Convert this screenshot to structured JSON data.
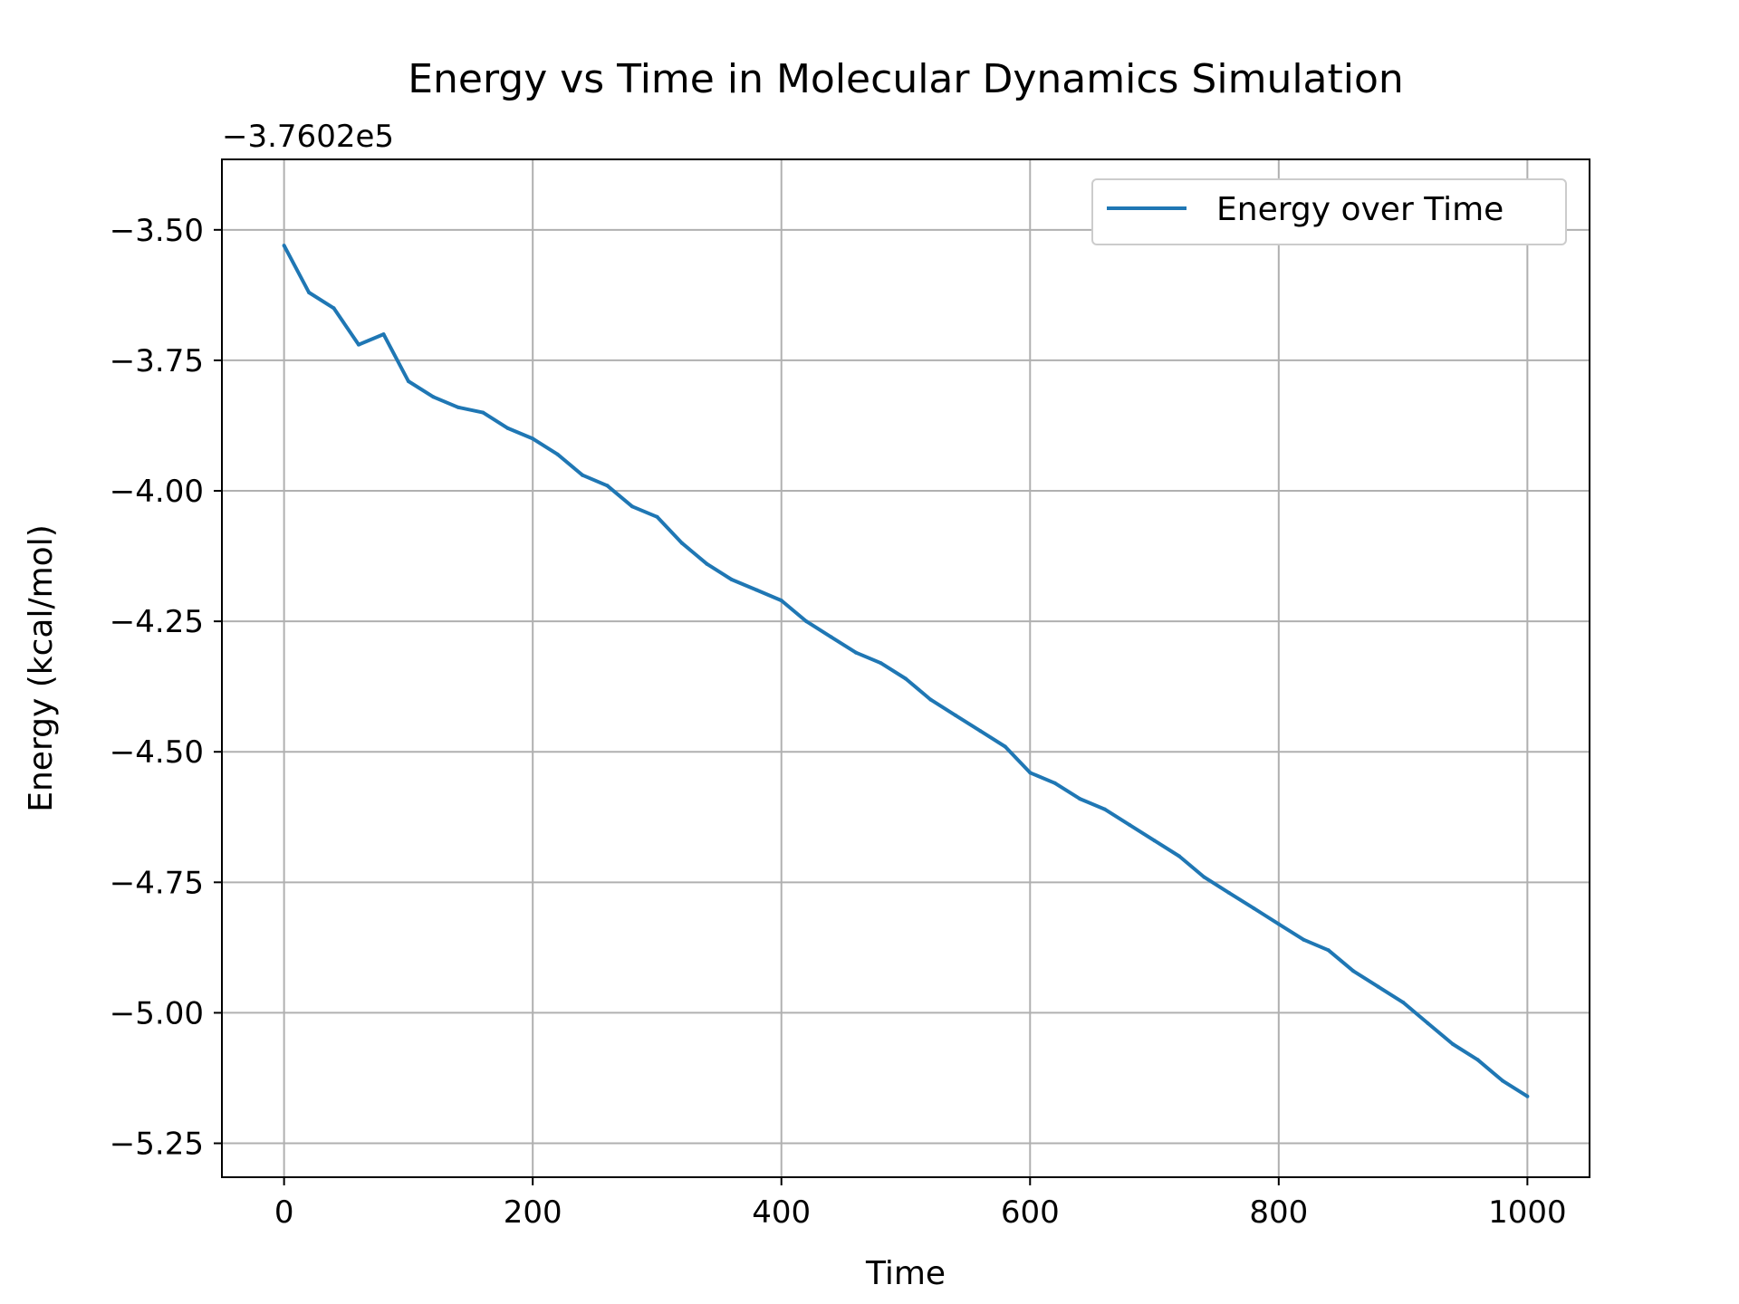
{
  "chart_data": {
    "type": "line",
    "title": "Energy vs Time in Molecular Dynamics Simulation",
    "xlabel": "Time",
    "ylabel": "Energy (kcal/mol)",
    "y_offset_label": "−3.7602e5",
    "y_offset": -376020,
    "xlim": [
      -50,
      1050
    ],
    "ylim": [
      -5.315,
      -3.365
    ],
    "x_ticks": [
      0,
      200,
      400,
      600,
      800,
      1000
    ],
    "x_tick_labels": [
      "0",
      "200",
      "400",
      "600",
      "800",
      "1000"
    ],
    "y_ticks": [
      -3.5,
      -3.75,
      -4.0,
      -4.25,
      -4.5,
      -4.75,
      -5.0,
      -5.25
    ],
    "y_tick_labels": [
      "−3.50",
      "−3.75",
      "−4.00",
      "−4.25",
      "−4.50",
      "−4.75",
      "−5.00",
      "−5.25"
    ],
    "grid": true,
    "legend_position": "top-right",
    "series": [
      {
        "name": "Energy over Time",
        "color": "#1f77b4",
        "x": [
          0,
          20,
          40,
          60,
          80,
          100,
          120,
          140,
          160,
          180,
          200,
          220,
          240,
          260,
          280,
          300,
          320,
          340,
          360,
          380,
          400,
          420,
          440,
          460,
          480,
          500,
          520,
          540,
          560,
          580,
          600,
          620,
          640,
          660,
          680,
          700,
          720,
          740,
          760,
          780,
          800,
          820,
          840,
          860,
          880,
          900,
          920,
          940,
          960,
          980,
          1000
        ],
        "y": [
          -3.53,
          -3.62,
          -3.65,
          -3.72,
          -3.7,
          -3.79,
          -3.82,
          -3.84,
          -3.85,
          -3.88,
          -3.9,
          -3.93,
          -3.97,
          -3.99,
          -4.03,
          -4.05,
          -4.1,
          -4.14,
          -4.17,
          -4.19,
          -4.21,
          -4.25,
          -4.28,
          -4.31,
          -4.33,
          -4.36,
          -4.4,
          -4.43,
          -4.46,
          -4.49,
          -4.54,
          -4.56,
          -4.59,
          -4.61,
          -4.64,
          -4.67,
          -4.7,
          -4.74,
          -4.77,
          -4.8,
          -4.83,
          -4.86,
          -4.88,
          -4.92,
          -4.95,
          -4.98,
          -5.02,
          -5.06,
          -5.09,
          -5.13,
          -5.16
        ]
      }
    ]
  }
}
